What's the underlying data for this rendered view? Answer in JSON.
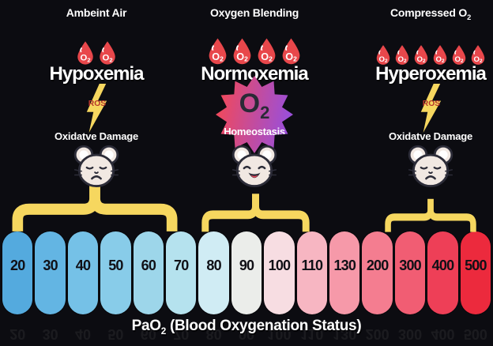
{
  "colors": {
    "background": "#0c0c11",
    "accent_yellow": "#f6d75f",
    "drop_red": "#e8474b",
    "ros_red": "#b5352c",
    "star_gradient_start": "#f0495c",
    "star_gradient_end": "#9b4fd8",
    "star_text": "#2a2a36",
    "mouse_face": "#f1e8e2",
    "mouse_outline": "#2c2c38",
    "mouse_tongue": "#e8485c",
    "pill_number": "#101016"
  },
  "columns": [
    {
      "header": {
        "text": "Ambeint Air",
        "sub": ""
      },
      "condition": "Hypoxemia",
      "drop_count": 2,
      "drop_label": {
        "text": "O",
        "sub": "2"
      },
      "effect": "ros-bolt",
      "bolt_label": "ROS",
      "damage_label": "Oxidatve Damage",
      "mouse_mood": "sad"
    },
    {
      "header": {
        "text": "Oxygen Blending",
        "sub": ""
      },
      "condition": "Normoxemia",
      "drop_count": 4,
      "drop_label": {
        "text": "O",
        "sub": "2"
      },
      "effect": "homeostasis-star",
      "star": {
        "main": "O",
        "sub": "2",
        "label": "Homeostasis"
      },
      "damage_label": "",
      "mouse_mood": "happy"
    },
    {
      "header": {
        "text": "Compressed O",
        "sub": "2"
      },
      "condition": "Hyperoxemia",
      "drop_count": 6,
      "drop_label": {
        "text": "O",
        "sub": "2"
      },
      "effect": "ros-bolt",
      "bolt_label": "ROS",
      "damage_label": "Oxidatve Damage",
      "mouse_mood": "sad"
    }
  ],
  "scale": {
    "pills": [
      {
        "value": "20",
        "color": "#54aade"
      },
      {
        "value": "30",
        "color": "#63b5e3"
      },
      {
        "value": "40",
        "color": "#75c1e7"
      },
      {
        "value": "50",
        "color": "#88cce9"
      },
      {
        "value": "60",
        "color": "#9dd6ea"
      },
      {
        "value": "70",
        "color": "#b5e2ee"
      },
      {
        "value": "80",
        "color": "#d0ecf4"
      },
      {
        "value": "90",
        "color": "#ebedea"
      },
      {
        "value": "100",
        "color": "#f7dde2"
      },
      {
        "value": "110",
        "color": "#f7b6c2"
      },
      {
        "value": "130",
        "color": "#f699a9"
      },
      {
        "value": "200",
        "color": "#f47d90"
      },
      {
        "value": "300",
        "color": "#f15d73"
      },
      {
        "value": "400",
        "color": "#ee3f57"
      },
      {
        "value": "500",
        "color": "#ec2a3d"
      }
    ]
  },
  "axis_title": {
    "pre": "PaO",
    "sub": "2",
    "post": " (Blood Oxygenation Status)"
  }
}
